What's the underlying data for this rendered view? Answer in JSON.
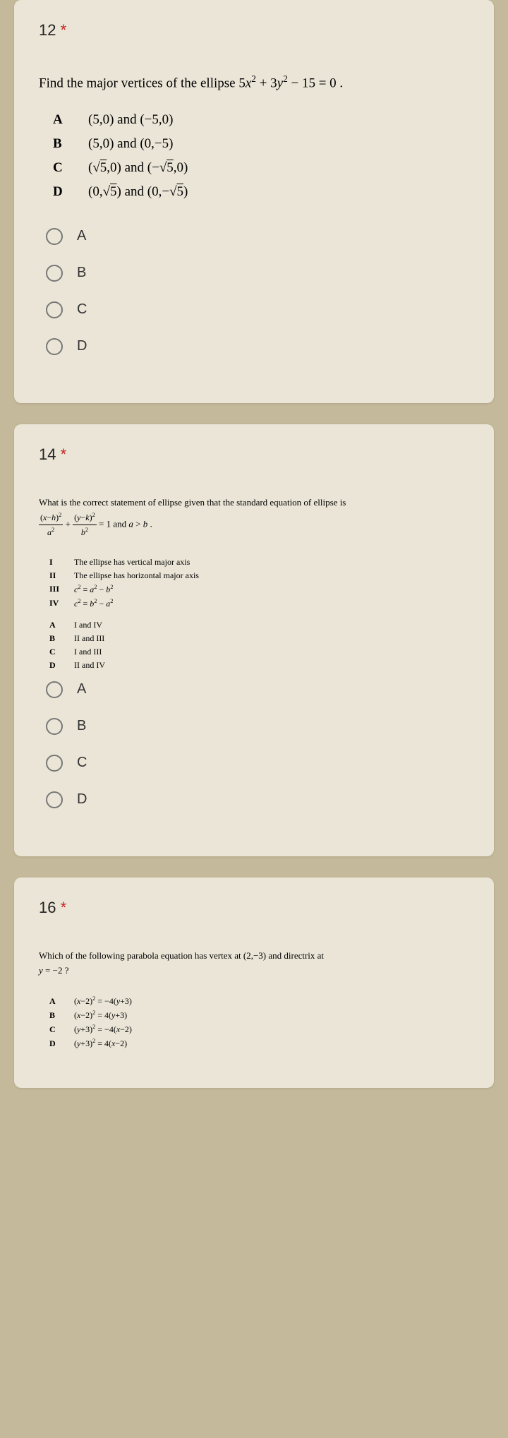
{
  "questions": [
    {
      "number": "12",
      "asterisk": "*",
      "prompt_html": "Find the major vertices of the ellipse 5<i>x</i><sup>2</sup> + 3<i>y</i><sup>2</sup> − 15 = 0 .",
      "answers": [
        {
          "label": "A",
          "html": "(5,0) and (−5,0)"
        },
        {
          "label": "B",
          "html": "(5,0) and (0,−5)"
        },
        {
          "label": "C",
          "html": "(√<span class='sqrt'>5</span>,0) and (−√<span class='sqrt'>5</span>,0)"
        },
        {
          "label": "D",
          "html": "(0,√<span class='sqrt'>5</span>) and (0,−√<span class='sqrt'>5</span>)"
        }
      ],
      "options": [
        "A",
        "B",
        "C",
        "D"
      ],
      "small": false
    },
    {
      "number": "14",
      "asterisk": "*",
      "prompt_html": "What is the correct statement of ellipse given that the standard equation of ellipse is<br><span class='frac'><span class='num'>(<i>x</i>−<i>h</i>)<sup>2</sup></span><span class='den'><i>a</i><sup>2</sup></span></span> + <span class='frac'><span class='num'>(<i>y</i>−<i>k</i>)<sup>2</sup></span><span class='den'><i>b</i><sup>2</sup></span></span> = 1 and <i>a</i> &gt; <i>b</i> .",
      "statements": [
        {
          "label": "I",
          "html": "The ellipse has vertical major axis"
        },
        {
          "label": "II",
          "html": "The ellipse has horizontal major axis"
        },
        {
          "label": "III",
          "html": "<i>c</i><sup>2</sup> = <i>a</i><sup>2</sup> − <i>b</i><sup>2</sup>"
        },
        {
          "label": "IV",
          "html": "<i>c</i><sup>2</sup> = <i>b</i><sup>2</sup> − <i>a</i><sup>2</sup>"
        }
      ],
      "answers": [
        {
          "label": "A",
          "html": "I and IV"
        },
        {
          "label": "B",
          "html": "II and III"
        },
        {
          "label": "C",
          "html": "I and III"
        },
        {
          "label": "D",
          "html": "II and IV"
        }
      ],
      "options": [
        "A",
        "B",
        "C",
        "D"
      ],
      "small": true
    },
    {
      "number": "16",
      "asterisk": "*",
      "prompt_html": "Which of the following parabola equation has vertex at (2,−3) and directrix at<br><i>y</i> = −2 ?",
      "answers": [
        {
          "label": "A",
          "html": "(<i>x</i>−2)<sup>2</sup> = −4(<i>y</i>+3)"
        },
        {
          "label": "B",
          "html": "(<i>x</i>−2)<sup>2</sup> = 4(<i>y</i>+3)"
        },
        {
          "label": "C",
          "html": "(<i>y</i>+3)<sup>2</sup> = −4(<i>x</i>−2)"
        },
        {
          "label": "D",
          "html": "(<i>y</i>+3)<sup>2</sup> = 4(<i>x</i>−2)"
        }
      ],
      "options": [],
      "small": true
    }
  ],
  "colors": {
    "page_bg": "#c4b99a",
    "card_bg": "#eae5d6",
    "asterisk": "#c5221f",
    "text": "#222222",
    "radio_border": "#777777"
  }
}
